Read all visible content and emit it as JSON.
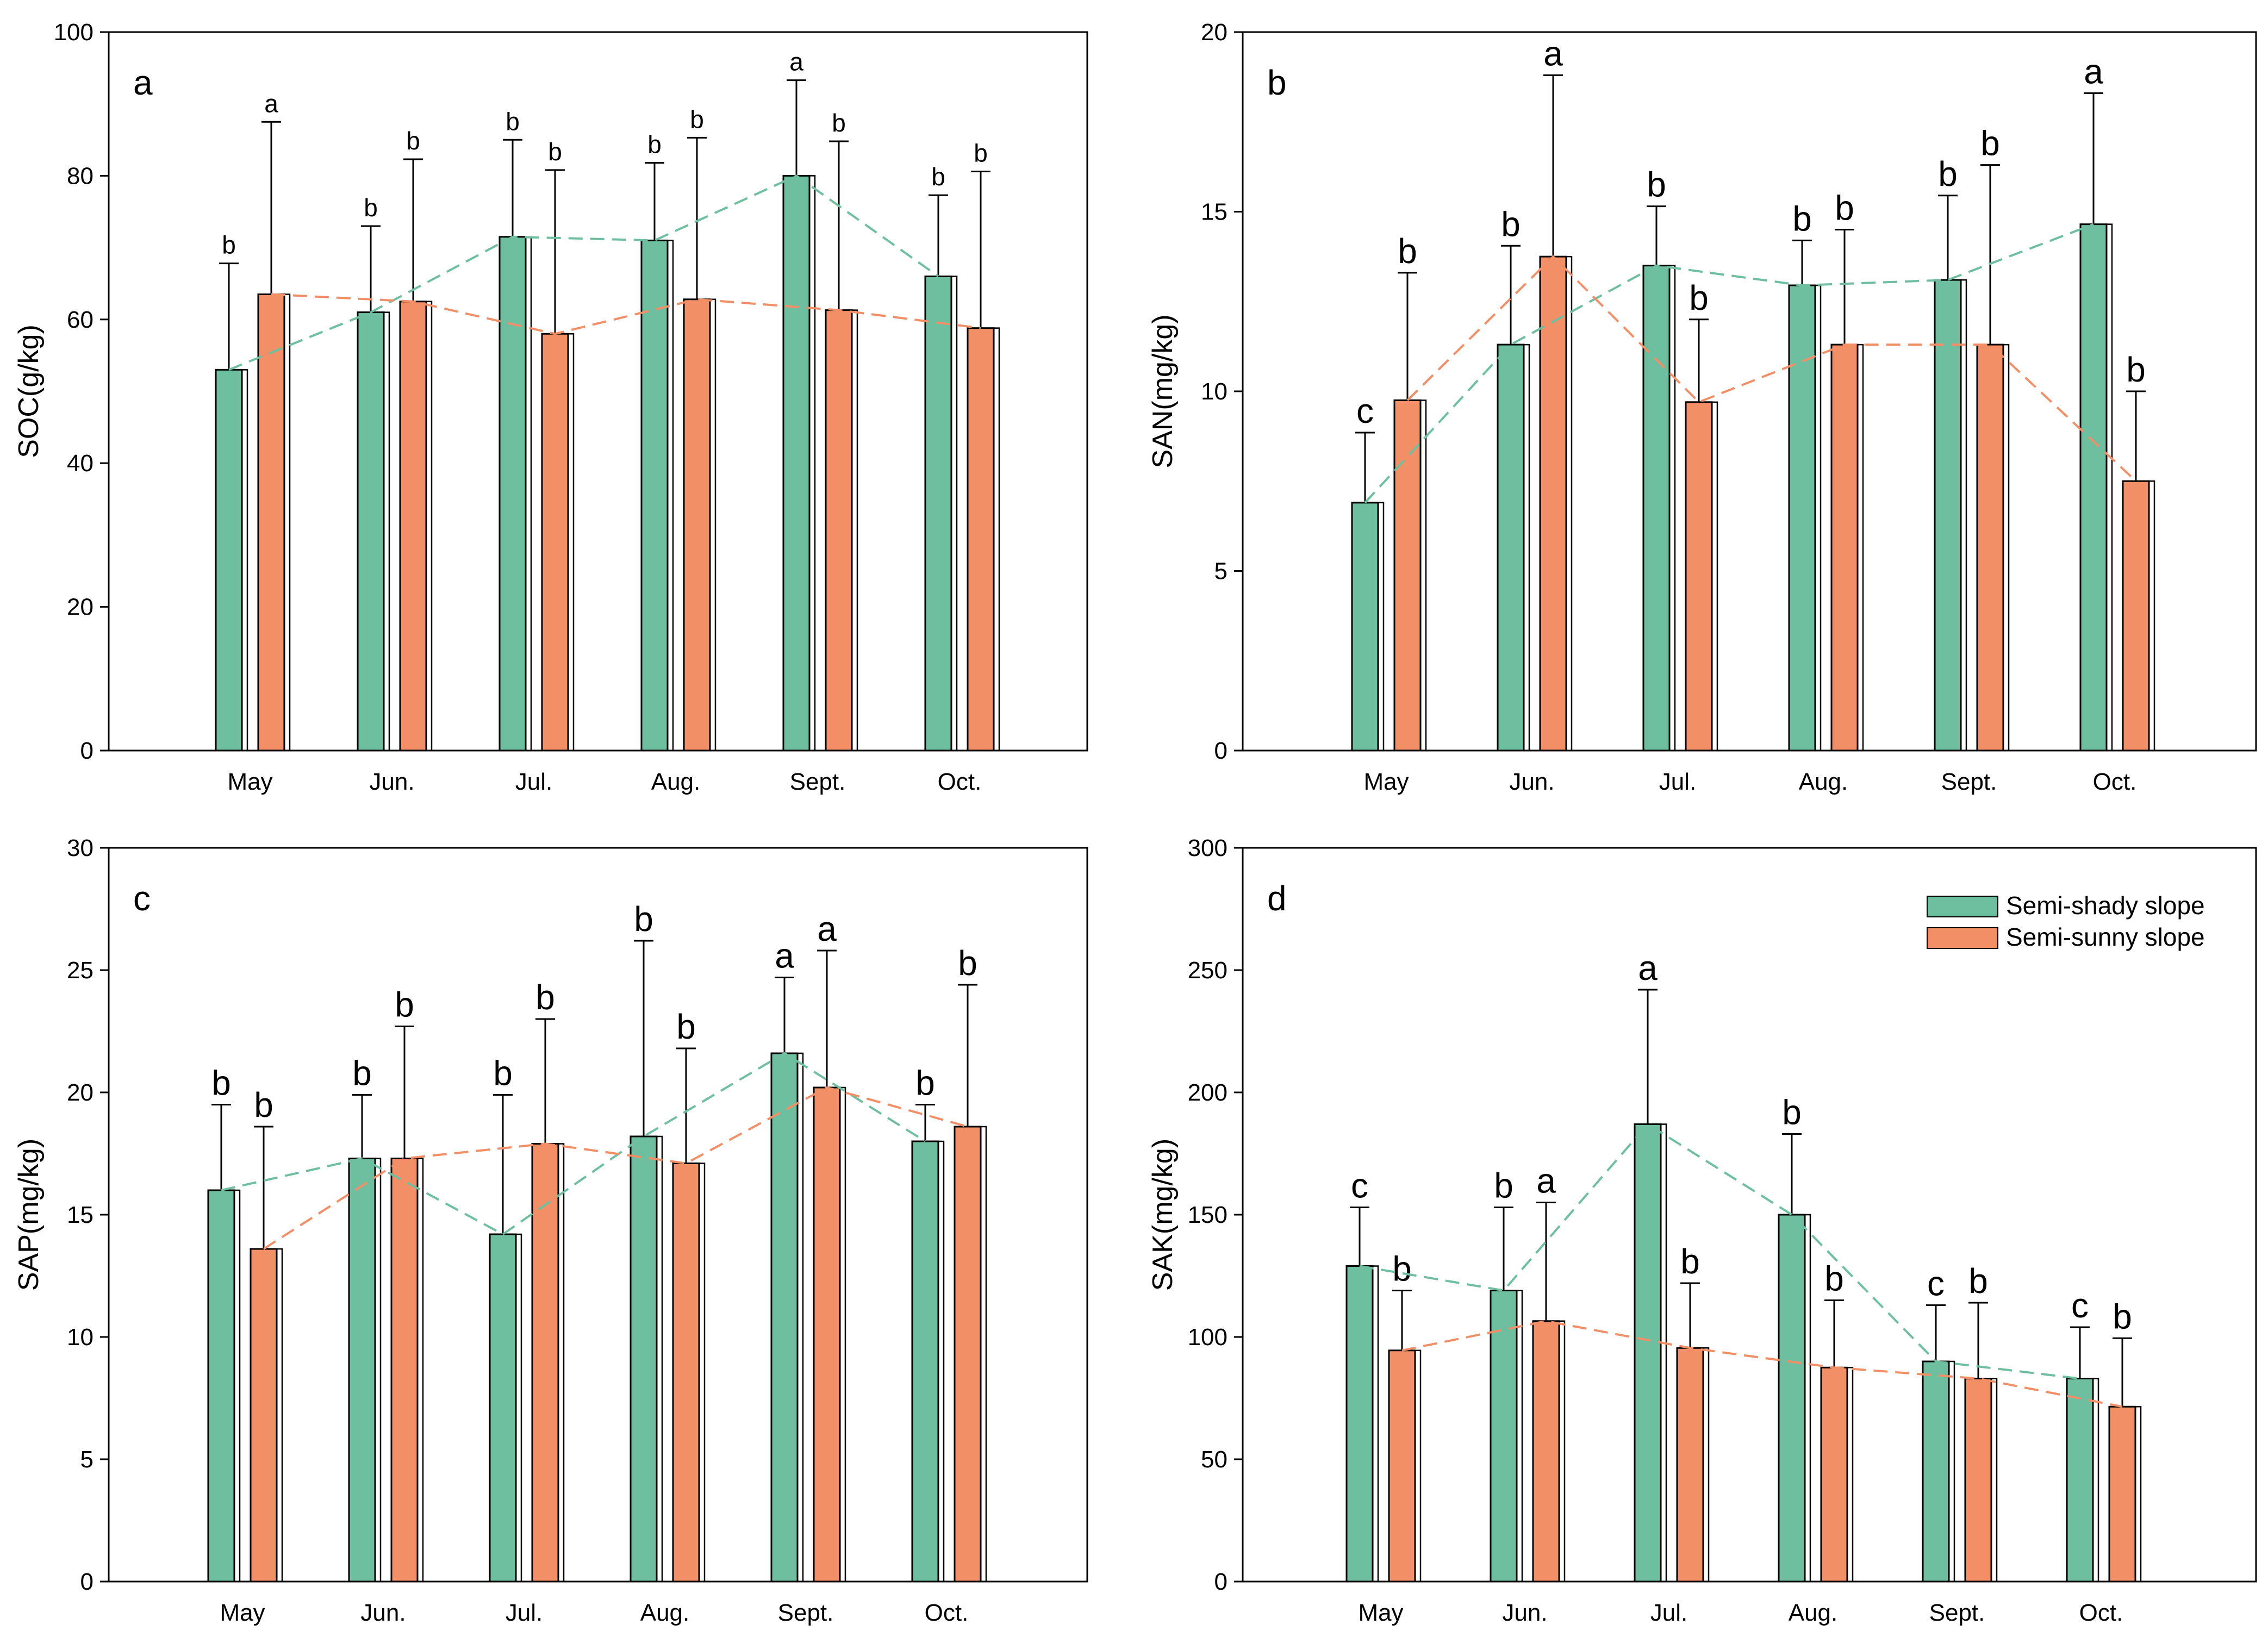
{
  "colors": {
    "semi_shady": "#6dbfa0",
    "semi_sunny": "#f28f66",
    "axis": "#000000"
  },
  "legend": {
    "items": [
      {
        "label": "Semi-shady slope",
        "color": "#6dbfa0"
      },
      {
        "label": "Semi-sunny slope",
        "color": "#f28f66"
      }
    ]
  },
  "chart_data": [
    {
      "type": "bar",
      "panel_label": "a",
      "ylabel": "SOC(g/kg)",
      "ylim": [
        0,
        100
      ],
      "yticks": [
        0,
        20,
        40,
        60,
        80,
        100
      ],
      "categories": [
        "May",
        "Jun.",
        "Jul.",
        "Aug.",
        "Sept.",
        "Oct."
      ],
      "series": [
        {
          "name": "Semi-shady slope",
          "values": [
            53,
            61,
            71.5,
            71,
            80,
            66
          ],
          "errors": [
            14.8,
            12,
            13.5,
            10.8,
            13.3,
            11.3
          ],
          "labels": [
            "b",
            "b",
            "b",
            "b",
            "a",
            "b"
          ]
        },
        {
          "name": "Semi-sunny slope",
          "values": [
            63.5,
            62.5,
            58,
            62.8,
            61.3,
            58.8
          ],
          "errors": [
            24,
            19.8,
            22.8,
            22.5,
            23.5,
            21.8
          ],
          "labels": [
            "a",
            "b",
            "b",
            "b",
            "b",
            "b"
          ]
        }
      ]
    },
    {
      "type": "bar",
      "panel_label": "b",
      "ylabel": "SAN(mg/kg)",
      "ylim": [
        0,
        20
      ],
      "yticks": [
        0,
        5,
        10,
        15,
        20
      ],
      "categories": [
        "May",
        "Jun.",
        "Jul.",
        "Aug.",
        "Sept.",
        "Oct."
      ],
      "series": [
        {
          "name": "Semi-shady slope",
          "values": [
            6.9,
            11.3,
            13.5,
            12.95,
            13.1,
            14.65
          ],
          "errors": [
            1.95,
            2.75,
            1.65,
            1.25,
            2.35,
            3.65
          ],
          "labels": [
            "c",
            "b",
            "b",
            "b",
            "b",
            "a"
          ]
        },
        {
          "name": "Semi-sunny slope",
          "values": [
            9.75,
            13.75,
            9.7,
            11.3,
            11.3,
            7.5
          ],
          "errors": [
            3.55,
            5.05,
            2.3,
            3.2,
            5,
            2.5
          ],
          "labels": [
            "b",
            "a",
            "b",
            "b",
            "b",
            "b"
          ]
        }
      ]
    },
    {
      "type": "bar",
      "panel_label": "c",
      "ylabel": "SAP(mg/kg)",
      "ylim": [
        0,
        30
      ],
      "yticks": [
        0,
        5,
        10,
        15,
        20,
        25,
        30
      ],
      "categories": [
        "May",
        "Jun.",
        "Jul.",
        "Aug.",
        "Sept.",
        "Oct."
      ],
      "series": [
        {
          "name": "Semi-shady slope",
          "values": [
            16,
            17.3,
            14.2,
            18.2,
            21.6,
            18
          ],
          "errors": [
            3.5,
            2.6,
            5.7,
            8,
            3.1,
            1.5
          ],
          "labels": [
            "b",
            "b",
            "b",
            "b",
            "a",
            "b"
          ]
        },
        {
          "name": "Semi-sunny slope",
          "values": [
            13.6,
            17.3,
            17.9,
            17.1,
            20.2,
            18.6
          ],
          "errors": [
            5,
            5.4,
            5.1,
            4.7,
            5.6,
            5.8
          ],
          "labels": [
            "b",
            "b",
            "b",
            "b",
            "a",
            "b"
          ]
        }
      ]
    },
    {
      "type": "bar",
      "panel_label": "d",
      "ylabel": "SAK(mg/kg)",
      "ylim": [
        0,
        300
      ],
      "yticks": [
        0,
        50,
        100,
        150,
        200,
        250,
        300
      ],
      "categories": [
        "May",
        "Jun.",
        "Jul.",
        "Aug.",
        "Sept.",
        "Oct."
      ],
      "series": [
        {
          "name": "Semi-shady slope",
          "values": [
            129,
            119,
            187,
            150,
            90,
            83
          ],
          "errors": [
            24,
            34,
            55,
            33,
            23,
            21
          ],
          "labels": [
            "c",
            "b",
            "a",
            "b",
            "c",
            "c"
          ]
        },
        {
          "name": "Semi-sunny slope",
          "values": [
            94.5,
            106.5,
            95.5,
            87.5,
            83,
            71.5
          ],
          "errors": [
            24.5,
            48.5,
            26.5,
            27.5,
            31,
            28
          ],
          "labels": [
            "b",
            "a",
            "b",
            "b",
            "b",
            "b"
          ]
        }
      ]
    }
  ]
}
